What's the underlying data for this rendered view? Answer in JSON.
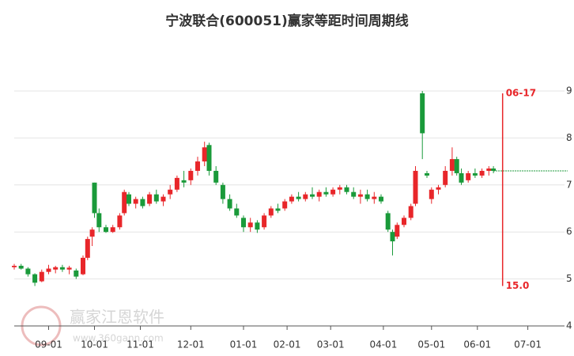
{
  "chart_data": {
    "type": "candlestick",
    "title": "宁波联合(600051)赢家等距时间周期线",
    "up_color": "#e8262a",
    "down_color": "#1a9a3a",
    "grid": true,
    "xlim": [
      0,
      240
    ],
    "ylim": [
      4,
      10.2
    ],
    "yticks": [
      4,
      5,
      6,
      7,
      8,
      9
    ],
    "xticks": [
      {
        "value": 15,
        "label": "09-01"
      },
      {
        "value": 35,
        "label": "10-01"
      },
      {
        "value": 55,
        "label": "11-01"
      },
      {
        "value": 77,
        "label": "12-01"
      },
      {
        "value": 100,
        "label": "01-01"
      },
      {
        "value": 119,
        "label": "02-01"
      },
      {
        "value": 138,
        "label": "03-01"
      },
      {
        "value": 161,
        "label": "04-01"
      },
      {
        "value": 182,
        "label": "05-01"
      },
      {
        "value": 202,
        "label": "06-01"
      },
      {
        "value": 224,
        "label": "07-01"
      }
    ],
    "x": [
      0,
      3,
      6,
      9,
      12,
      15,
      18,
      21,
      24,
      27,
      30,
      32,
      34,
      35,
      37,
      40,
      43,
      46,
      48,
      50,
      53,
      56,
      59,
      62,
      65,
      68,
      71,
      74,
      77,
      80,
      83,
      85,
      88,
      91,
      94,
      97,
      100,
      103,
      106,
      109,
      112,
      115,
      118,
      121,
      124,
      127,
      130,
      133,
      136,
      139,
      142,
      145,
      148,
      151,
      154,
      157,
      160,
      163,
      165,
      167,
      170,
      173,
      175,
      178,
      180,
      182,
      185,
      188,
      191,
      193,
      195,
      198,
      201,
      204,
      207,
      209
    ],
    "open": [
      5.25,
      5.28,
      5.22,
      5.1,
      4.95,
      5.15,
      5.2,
      5.25,
      5.2,
      5.18,
      5.1,
      5.45,
      5.9,
      7.05,
      6.4,
      6.1,
      6.0,
      6.1,
      6.4,
      6.8,
      6.6,
      6.7,
      6.6,
      6.8,
      6.65,
      6.8,
      6.9,
      7.1,
      7.1,
      7.3,
      7.5,
      7.85,
      7.3,
      7.0,
      6.7,
      6.5,
      6.3,
      6.1,
      6.2,
      6.1,
      6.35,
      6.5,
      6.5,
      6.65,
      6.75,
      6.7,
      6.8,
      6.75,
      6.85,
      6.8,
      6.9,
      6.95,
      6.85,
      6.75,
      6.8,
      6.7,
      6.75,
      6.4,
      6.0,
      5.9,
      6.15,
      6.3,
      6.6,
      8.95,
      7.25,
      6.7,
      6.9,
      7.0,
      7.3,
      7.55,
      7.25,
      7.1,
      7.25,
      7.2,
      7.3,
      7.35
    ],
    "high": [
      5.32,
      5.32,
      5.25,
      5.12,
      5.2,
      5.3,
      5.28,
      5.3,
      5.28,
      5.22,
      5.5,
      5.9,
      6.1,
      7.05,
      6.5,
      6.15,
      6.15,
      6.4,
      6.9,
      6.85,
      6.75,
      6.75,
      6.85,
      6.9,
      6.8,
      7.0,
      7.2,
      7.3,
      7.35,
      7.6,
      7.92,
      7.9,
      7.4,
      7.05,
      6.8,
      6.6,
      6.35,
      6.3,
      6.25,
      6.4,
      6.55,
      6.6,
      6.7,
      6.8,
      6.85,
      6.85,
      6.95,
      6.9,
      6.95,
      6.95,
      7.0,
      7.0,
      6.95,
      6.9,
      6.9,
      6.85,
      6.8,
      6.45,
      6.05,
      6.2,
      6.35,
      6.6,
      7.4,
      9.0,
      7.3,
      6.95,
      7.0,
      7.4,
      7.8,
      7.6,
      7.35,
      7.3,
      7.35,
      7.35,
      7.4,
      7.4
    ],
    "low": [
      5.2,
      5.2,
      5.05,
      4.85,
      4.93,
      5.1,
      5.12,
      5.15,
      5.1,
      5.0,
      5.08,
      5.4,
      5.7,
      6.3,
      6.0,
      5.98,
      5.98,
      6.05,
      6.35,
      6.55,
      6.5,
      6.5,
      6.55,
      6.6,
      6.55,
      6.7,
      6.85,
      6.95,
      7.0,
      7.2,
      7.4,
      7.2,
      7.0,
      6.6,
      6.45,
      6.3,
      6.0,
      6.0,
      5.98,
      6.05,
      6.3,
      6.4,
      6.45,
      6.6,
      6.65,
      6.65,
      6.7,
      6.65,
      6.75,
      6.75,
      6.8,
      6.8,
      6.7,
      6.6,
      6.65,
      6.6,
      6.6,
      6.0,
      5.5,
      5.85,
      6.1,
      6.25,
      6.55,
      7.55,
      7.15,
      6.6,
      6.8,
      6.95,
      7.2,
      7.2,
      7.0,
      7.05,
      7.15,
      7.15,
      7.2,
      7.25
    ],
    "close": [
      5.28,
      5.22,
      5.1,
      4.92,
      5.15,
      5.22,
      5.25,
      5.2,
      5.24,
      5.05,
      5.45,
      5.85,
      6.05,
      6.4,
      6.1,
      6.0,
      6.1,
      6.35,
      6.85,
      6.6,
      6.7,
      6.55,
      6.8,
      6.65,
      6.75,
      6.9,
      7.15,
      7.05,
      7.3,
      7.5,
      7.8,
      7.3,
      7.05,
      6.7,
      6.5,
      6.35,
      6.1,
      6.2,
      6.05,
      6.35,
      6.5,
      6.45,
      6.65,
      6.75,
      6.7,
      6.8,
      6.75,
      6.85,
      6.8,
      6.9,
      6.95,
      6.85,
      6.75,
      6.8,
      6.7,
      6.75,
      6.65,
      6.05,
      5.8,
      6.15,
      6.3,
      6.55,
      7.3,
      8.1,
      7.2,
      6.9,
      6.95,
      7.3,
      7.55,
      7.25,
      7.05,
      7.25,
      7.2,
      7.3,
      7.35,
      7.3
    ],
    "level_line": {
      "value": 7.3,
      "from": 209,
      "color": "#1a9a3a"
    },
    "cycle_line": {
      "x": 213,
      "top": 8.95,
      "bottom": 4.85,
      "date_label": "06-17",
      "value_label": "15.0",
      "color": "#e8262a"
    },
    "watermark": {
      "name": "赢家江恩软件",
      "url": "www.360gann.com"
    }
  }
}
